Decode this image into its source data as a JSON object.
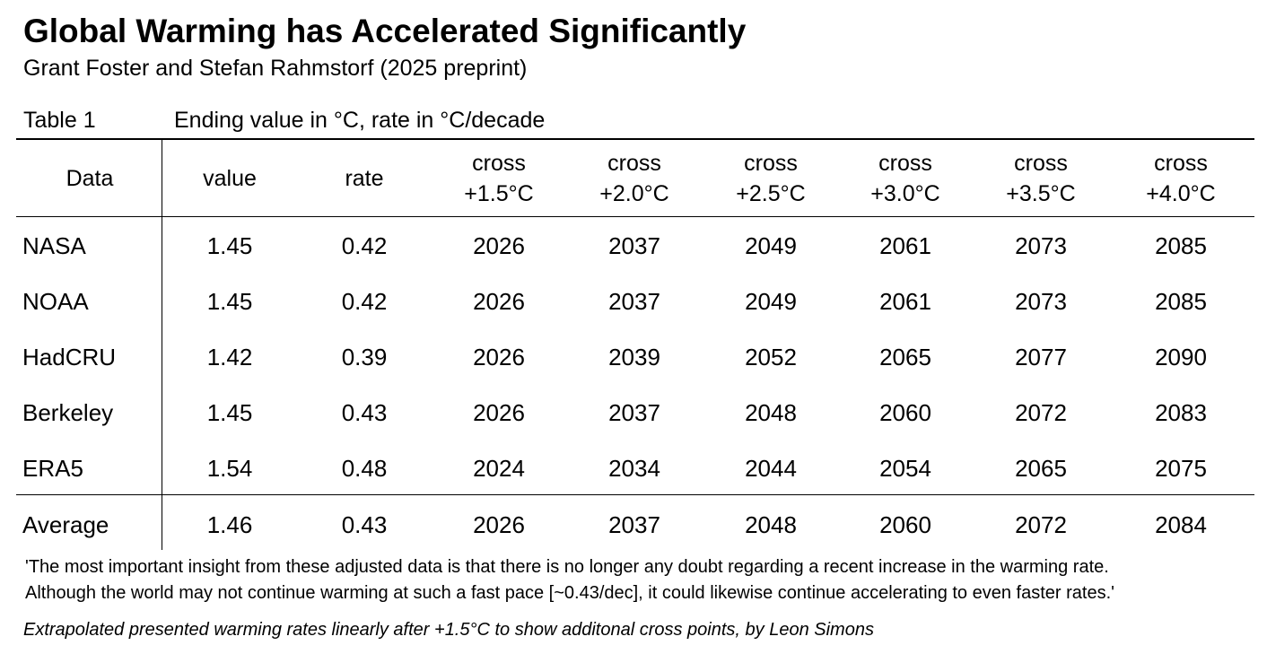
{
  "header": {
    "title": "Global Warming has Accelerated Significantly",
    "subtitle": "Grant Foster and Stefan Rahmstorf (2025 preprint)"
  },
  "table": {
    "label": "Table 1",
    "caption": "Ending value in °C, rate in °C/decade",
    "columns": [
      [
        "Data"
      ],
      [
        "value"
      ],
      [
        "rate"
      ],
      [
        "cross",
        "+1.5°C"
      ],
      [
        "cross",
        "+2.0°C"
      ],
      [
        "cross",
        "+2.5°C"
      ],
      [
        "cross",
        "+3.0°C"
      ],
      [
        "cross",
        "+3.5°C"
      ],
      [
        "cross",
        "+4.0°C"
      ]
    ],
    "rows": [
      [
        "NASA",
        "1.45",
        "0.42",
        "2026",
        "2037",
        "2049",
        "2061",
        "2073",
        "2085"
      ],
      [
        "NOAA",
        "1.45",
        "0.42",
        "2026",
        "2037",
        "2049",
        "2061",
        "2073",
        "2085"
      ],
      [
        "HadCRU",
        "1.42",
        "0.39",
        "2026",
        "2039",
        "2052",
        "2065",
        "2077",
        "2090"
      ],
      [
        "Berkeley",
        "1.45",
        "0.43",
        "2026",
        "2037",
        "2048",
        "2060",
        "2072",
        "2083"
      ],
      [
        "ERA5",
        "1.54",
        "0.48",
        "2024",
        "2034",
        "2044",
        "2054",
        "2065",
        "2075"
      ]
    ],
    "average": [
      "Average",
      "1.46",
      "0.43",
      "2026",
      "2037",
      "2048",
      "2060",
      "2072",
      "2084"
    ]
  },
  "notes": {
    "quote": [
      "'The most important insight from these adjusted data is that there is no longer any doubt regarding a recent increase in the warming rate.",
      "Although the world may not continue warming at such a fast pace [~0.43/dec], it could likewise continue accelerating to even faster rates.'"
    ],
    "credit": "Extrapolated presented warming rates linearly after +1.5°C to show additonal cross points, by Leon Simons"
  }
}
